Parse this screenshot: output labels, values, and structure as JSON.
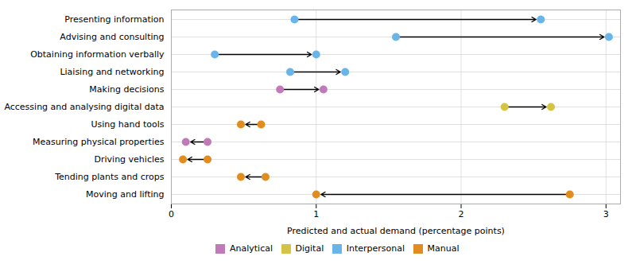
{
  "chart_data": {
    "type": "arrow",
    "orientation": "horizontal",
    "xlabel": "Predicted and actual demand (percentage points)",
    "categories": [
      "Presenting information",
      "Advising and consulting",
      "Obtaining information verbally",
      "Liaising and networking",
      "Making decisions",
      "Accessing and analysing digital data",
      "Using hand tools",
      "Measuring physical properties",
      "Driving vehicles",
      "Tending plants and crops",
      "Moving and lifting"
    ],
    "series": [
      {
        "name": "Analytical",
        "color": "#c17ab8",
        "start": [
          null,
          null,
          null,
          null,
          0.75,
          null,
          null,
          0.25,
          null,
          null,
          null
        ],
        "end": [
          null,
          null,
          null,
          null,
          1.05,
          null,
          null,
          0.1,
          null,
          null,
          null
        ]
      },
      {
        "name": "Digital",
        "color": "#d4c445",
        "start": [
          null,
          null,
          null,
          null,
          null,
          2.3,
          null,
          null,
          null,
          null,
          null
        ],
        "end": [
          null,
          null,
          null,
          null,
          null,
          2.62,
          null,
          null,
          null,
          null,
          null
        ]
      },
      {
        "name": "Interpersonal",
        "color": "#6ab4e8",
        "start": [
          0.85,
          1.55,
          0.3,
          0.82,
          null,
          null,
          null,
          null,
          null,
          null,
          null
        ],
        "end": [
          2.55,
          3.02,
          1.0,
          1.2,
          null,
          null,
          null,
          null,
          null,
          null,
          null
        ]
      },
      {
        "name": "Manual",
        "color": "#e08c20",
        "start": [
          null,
          null,
          null,
          null,
          null,
          null,
          0.62,
          null,
          0.25,
          0.65,
          2.75
        ],
        "end": [
          null,
          null,
          null,
          null,
          null,
          null,
          0.48,
          null,
          0.08,
          0.48,
          1.0
        ]
      }
    ],
    "xlim": [
      0,
      3.1
    ],
    "xticks": [
      0,
      1,
      2,
      3
    ],
    "grid": true,
    "legend": "bottom"
  }
}
